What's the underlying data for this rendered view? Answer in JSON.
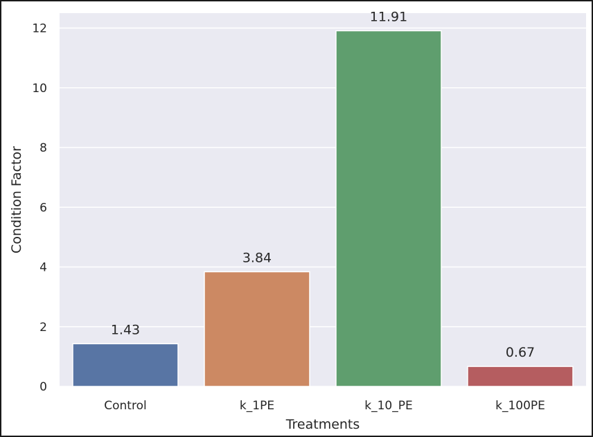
{
  "chart_data": {
    "type": "bar",
    "title": "",
    "xlabel": "Treatments",
    "ylabel": "Condition Factor",
    "categories": [
      "Control",
      "k_1PE",
      "k_10_PE",
      "k_100PE"
    ],
    "values": [
      1.43,
      3.84,
      11.91,
      0.67
    ],
    "value_labels": [
      "1.43",
      "3.84",
      "11.91",
      "0.67"
    ],
    "colors": [
      "#5875a4",
      "#cc8963",
      "#5f9e6e",
      "#b55d60"
    ],
    "yticks": [
      "0",
      "2",
      "4",
      "6",
      "8",
      "10",
      "12"
    ],
    "ylim": [
      0,
      12.5
    ],
    "grid": true,
    "background": "#eaeaf2"
  }
}
